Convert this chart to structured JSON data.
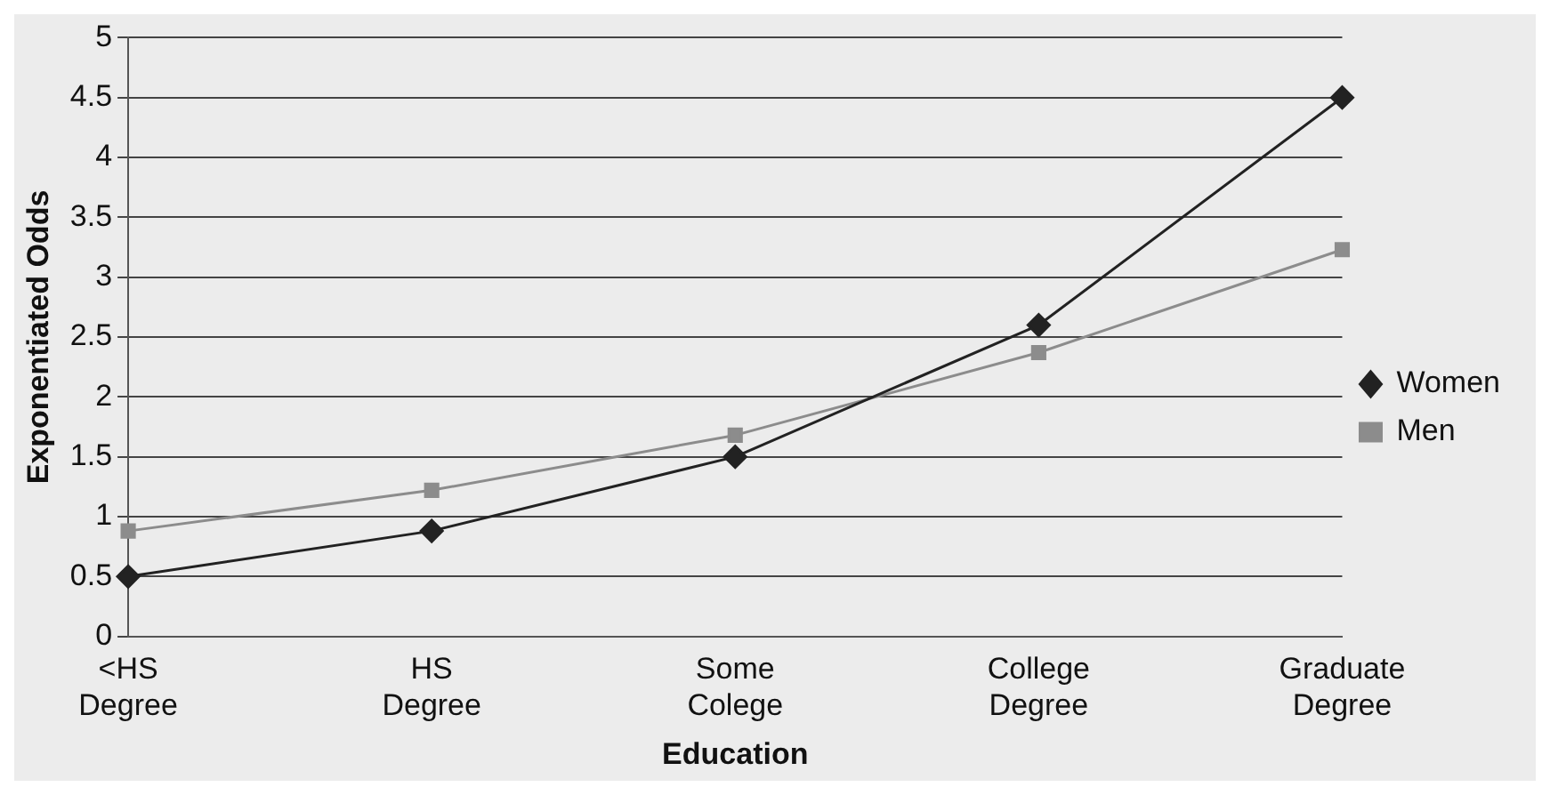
{
  "chart_data": {
    "type": "line",
    "xlabel": "Education",
    "ylabel": "Exponentiated Odds",
    "categories": [
      "<HS\nDegree",
      "HS\nDegree",
      "Some\nColege",
      "College\nDegree",
      "Graduate\nDegree"
    ],
    "series": [
      {
        "name": "Women",
        "color": "#222222",
        "marker": "diamond",
        "values": [
          0.5,
          0.88,
          1.5,
          2.6,
          4.5
        ]
      },
      {
        "name": "Men",
        "color": "#8c8c8c",
        "marker": "square",
        "values": [
          0.88,
          1.22,
          1.68,
          2.37,
          3.23
        ]
      }
    ],
    "ylim": [
      0,
      5
    ],
    "yticks": [
      0,
      0.5,
      1,
      1.5,
      2,
      2.5,
      3,
      3.5,
      4,
      4.5,
      5
    ],
    "grid": "y",
    "legend": "right",
    "line_style": "solid"
  }
}
